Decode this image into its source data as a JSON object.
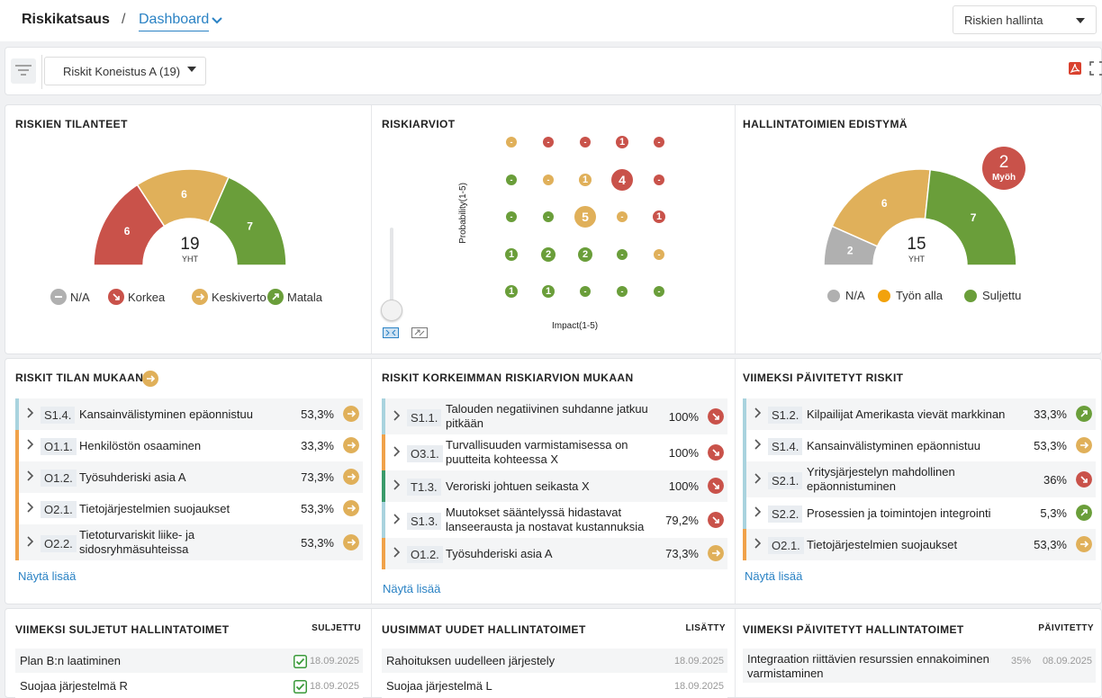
{
  "breadcrumb": {
    "root": "Riskikatsaus",
    "separator": "/",
    "current": "Dashboard"
  },
  "top_select": {
    "value": "Riskien hallinta"
  },
  "filter": {
    "value": "Riskit Koneistus A (19)"
  },
  "colors": {
    "red": "#c9524a",
    "orange": "#e0b05a",
    "green": "#6a9e3a",
    "gray": "#b0b0b0",
    "link": "#2a82c4"
  },
  "panel_status": {
    "title": "RISKIEN TILANTEET",
    "total": "19",
    "total_label": "YHT",
    "segments": [
      {
        "label": "6",
        "value": 6
      },
      {
        "label": "6",
        "value": 6
      },
      {
        "label": "7",
        "value": 7
      }
    ],
    "legend": [
      "N/A",
      "Korkea",
      "Keskiverto",
      "Matala"
    ]
  },
  "panel_matrix": {
    "title": "RISKIARVIOT",
    "ylabel": "Probability(1-5)",
    "xlabel": "Impact(1-5)",
    "cells": [
      [
        "-",
        "-",
        "-",
        "1",
        "-"
      ],
      [
        "-",
        "-",
        "1",
        "4",
        "-"
      ],
      [
        "-",
        "-",
        "5",
        "-",
        "1"
      ],
      [
        "1",
        "2",
        "2",
        "-",
        "-"
      ],
      [
        "1",
        "1",
        "-",
        "-",
        "-"
      ]
    ]
  },
  "panel_progress": {
    "title": "HALLINTATOIMIEN EDISTYMÄ",
    "total": "15",
    "total_label": "YHT",
    "segments": [
      {
        "label": "2",
        "value": 2
      },
      {
        "label": "6",
        "value": 6
      },
      {
        "label": "7",
        "value": 7
      }
    ],
    "late": {
      "count": "2",
      "label": "Myöh"
    },
    "legend": [
      "N/A",
      "Työn alla",
      "Suljettu"
    ]
  },
  "by_status": {
    "title": "RISKIT TILAN MUKAAN",
    "items": [
      {
        "code": "S1.4.",
        "text": "Kansainvälistyminen epäonnistuu",
        "text2": "",
        "pct": "53,3%"
      },
      {
        "code": "O1.1.",
        "text": "Henkilöstön osaaminen",
        "text2": "",
        "pct": "33,3%"
      },
      {
        "code": "O1.2.",
        "text": "Työsuhderiski asia A",
        "text2": "",
        "pct": "73,3%"
      },
      {
        "code": "O2.1.",
        "text": "Tietojärjestelmien suojaukset",
        "text2": "",
        "pct": "53,3%"
      },
      {
        "code": "O2.2.",
        "text": "Tietoturvariskit liike- ja",
        "text2": "sidosryhmäsuhteissa",
        "pct": "53,3%"
      }
    ],
    "more": "Näytä lisää"
  },
  "by_rating": {
    "title": "RISKIT KORKEIMMAN RISKIARVION MUKAAN",
    "items": [
      {
        "code": "S1.1.",
        "text": "Talouden negatiivinen suhdanne jatkuu",
        "text2": "pitkään",
        "pct": "100%"
      },
      {
        "code": "O3.1.",
        "text": "Turvallisuuden varmistamisessa on",
        "text2": "puutteita kohteessa X",
        "pct": "100%"
      },
      {
        "code": "T1.3.",
        "text": "Veroriski johtuen seikasta X",
        "text2": "",
        "pct": "100%"
      },
      {
        "code": "S1.3.",
        "text": "Muutokset sääntelyssä hidastavat",
        "text2": "lanseerausta ja nostavat kustannuksia",
        "pct": "79,2%"
      },
      {
        "code": "O1.2.",
        "text": "Työsuhderiski asia A",
        "text2": "",
        "pct": "73,3%"
      }
    ],
    "more": "Näytä lisää"
  },
  "recent_risks": {
    "title": "VIIMEKSI PÄIVITETYT RISKIT",
    "items": [
      {
        "code": "S1.2.",
        "text": "Kilpailijat Amerikasta vievät markkinan",
        "text2": "",
        "pct": "33,3%"
      },
      {
        "code": "S1.4.",
        "text": "Kansainvälistyminen epäonnistuu",
        "text2": "",
        "pct": "53,3%"
      },
      {
        "code": "S2.1.",
        "text": "Yritysjärjestelyn mahdollinen",
        "text2": "epäonnistuminen",
        "pct": "36%"
      },
      {
        "code": "S2.2.",
        "text": "Prosessien ja toimintojen integrointi",
        "text2": "",
        "pct": "5,3%"
      },
      {
        "code": "O2.1.",
        "text": "Tietojärjestelmien suojaukset",
        "text2": "",
        "pct": "53,3%"
      }
    ],
    "more": "Näytä lisää"
  },
  "closed_controls": {
    "title": "VIIMEKSI SULJETUT HALLINTATOIMET",
    "col": "SULJETTU",
    "items": [
      {
        "text": "Plan B:n laatiminen",
        "date": "18.09.2025"
      },
      {
        "text": "Suojaa järjestelmä R",
        "date": "18.09.2025"
      }
    ]
  },
  "new_controls": {
    "title": "UUSIMMAT UUDET HALLINTATOIMET",
    "col": "LISÄTTY",
    "items": [
      {
        "text": "Rahoituksen uudelleen järjestely",
        "date": "18.09.2025"
      },
      {
        "text": "Suojaa järjestelmä L",
        "date": "18.09.2025"
      }
    ]
  },
  "updated_controls": {
    "title": "VIIMEKSI PÄIVITETYT HALLINTATOIMET",
    "col": "PÄIVITETTY",
    "items": [
      {
        "text": "Integraation riittävien resurssien ennakoiminen",
        "text2": "varmistaminen",
        "pct": "35%",
        "date": "08.09.2025"
      }
    ]
  }
}
